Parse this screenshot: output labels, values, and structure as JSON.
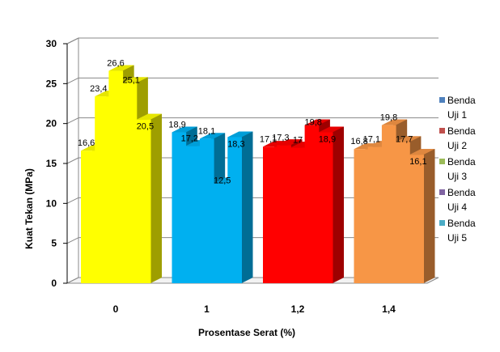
{
  "chart_data": {
    "type": "bar",
    "categories": [
      "0",
      "1",
      "1,2",
      "1,4"
    ],
    "category_colors": [
      "#ffff00",
      "#00b0f0",
      "#ff0000",
      "#f79646"
    ],
    "series": [
      {
        "name": "Benda Uji 1",
        "values": [
          16.6,
          18.9,
          17.1,
          16.8
        ],
        "labels": [
          "16,6",
          "18,9",
          "17,1",
          "16,8"
        ]
      },
      {
        "name": "Benda Uji 2",
        "values": [
          23.4,
          17.2,
          17.3,
          17.1
        ],
        "labels": [
          "23,4",
          "17,2",
          "17,3",
          "17,1"
        ]
      },
      {
        "name": "Benda Uji 3",
        "values": [
          26.6,
          18.1,
          17.0,
          19.8
        ],
        "labels": [
          "26,6",
          "18,1",
          "17",
          "19,8"
        ]
      },
      {
        "name": "Benda Uji 4",
        "values": [
          25.1,
          12.5,
          19.8,
          17.7
        ],
        "labels": [
          "25,1",
          "12,5",
          "19,8",
          "17,7"
        ]
      },
      {
        "name": "Benda Uji 5",
        "values": [
          20.5,
          18.3,
          18.9,
          16.1
        ],
        "labels": [
          "20,5",
          "18,3",
          "18,9",
          "16,1"
        ]
      }
    ],
    "legend": [
      {
        "line1": "Benda",
        "line2": "Uji 1",
        "color": "#4f81bd"
      },
      {
        "line1": "Benda",
        "line2": "Uji 2",
        "color": "#c0504d"
      },
      {
        "line1": "Benda",
        "line2": "Uji 3",
        "color": "#9bbb59"
      },
      {
        "line1": "Benda",
        "line2": "Uji 4",
        "color": "#8064a2"
      },
      {
        "line1": "Benda",
        "line2": "Uji 5",
        "color": "#4bacc6"
      }
    ],
    "legend_position": "right",
    "xlabel": "Prosentase Serat (%)",
    "ylabel": "Kuat Tekan (MPa)",
    "ylim": [
      0,
      30
    ],
    "yticks": [
      0,
      5,
      10,
      15,
      20,
      25,
      30
    ],
    "grid": true
  }
}
